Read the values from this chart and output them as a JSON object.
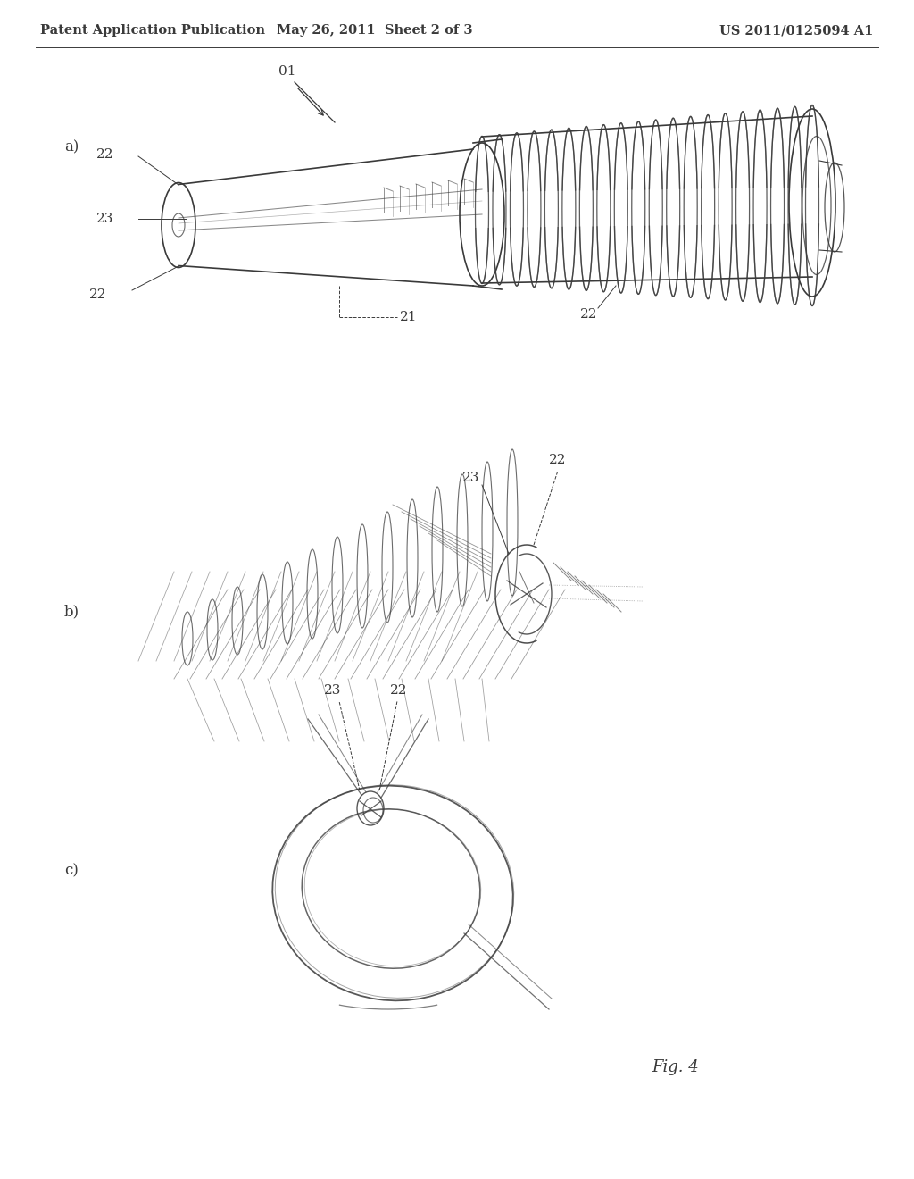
{
  "background_color": "#ffffff",
  "header_left": "Patent Application Publication",
  "header_center": "May 26, 2011  Sheet 2 of 3",
  "header_right": "US 2011/0125094 A1",
  "line_color": "#3a3a3a",
  "line_width": 1.2,
  "label_fontsize": 11,
  "fig_label": "Fig. 4"
}
